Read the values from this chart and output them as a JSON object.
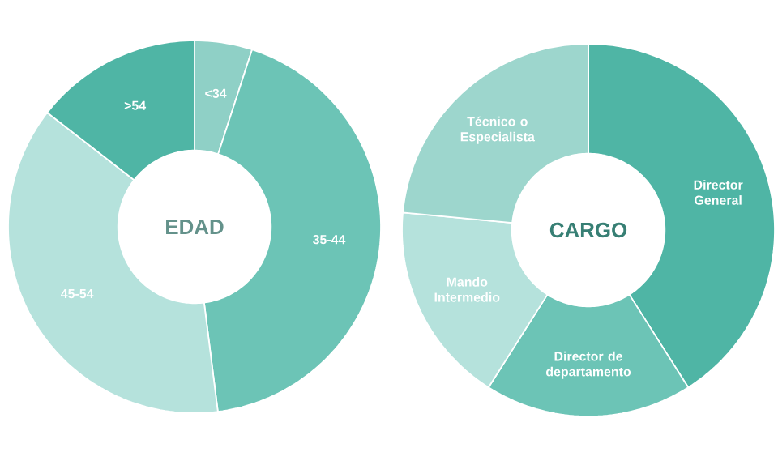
{
  "chart_data": [
    {
      "type": "donut",
      "title": "EDAD",
      "categories": [
        "<34",
        "35-44",
        "45-54",
        ">54"
      ],
      "values": [
        5,
        43,
        37.5,
        14.5
      ],
      "colors": [
        "#8fd0c6",
        "#6cc4b6",
        "#b5e2dc",
        "#4fb5a5"
      ]
    },
    {
      "type": "donut",
      "title": "CARGO",
      "categories": [
        "Director General",
        "Director de departamento",
        "Mando Intermedio",
        "Técnico o Especialista"
      ],
      "values": [
        41,
        18,
        17.5,
        23.5
      ],
      "colors": [
        "#4fb5a5",
        "#6cc4b6",
        "#b5e2dc",
        "#9dd6cd"
      ]
    }
  ]
}
